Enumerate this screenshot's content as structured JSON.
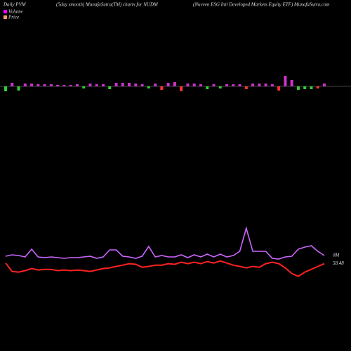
{
  "chart_data": {
    "type": "pvm",
    "title": "Daily PVM",
    "subtitle": "(5day smooth) MunafaSutra(TM) charts for NUDM",
    "description": "(Nuveen ESG Intl Developed Markets Equity ETF) MunafaSutra.com",
    "legend": [
      {
        "name": "Volume",
        "color": "#ff00ff"
      },
      {
        "name": "Price",
        "color": "#ff9966"
      }
    ],
    "pvm": {
      "ylim": [
        -20,
        20
      ],
      "values": [
        -7,
        5,
        -6,
        4,
        4,
        3,
        3,
        3,
        2,
        2,
        2,
        3,
        -3,
        4,
        3,
        3,
        -4,
        5,
        5,
        5,
        4,
        3,
        -3,
        4,
        -5,
        5,
        6,
        -7,
        4,
        4,
        3,
        -4,
        3,
        -3,
        3,
        3,
        3,
        -4,
        4,
        4,
        4,
        3,
        -6,
        15,
        9,
        -5,
        -4,
        -4,
        -3,
        4
      ],
      "colors": [
        "#33cc33",
        "#cc33cc",
        "#33cc33",
        "#cc33cc",
        "#cc33cc",
        "#cc33cc",
        "#cc33cc",
        "#cc33cc",
        "#cc33cc",
        "#cc33cc",
        "#cc33cc",
        "#cc33cc",
        "#33cc33",
        "#cc33cc",
        "#cc33cc",
        "#cc33cc",
        "#33cc33",
        "#cc33cc",
        "#cc33cc",
        "#cc33cc",
        "#cc33cc",
        "#cc33cc",
        "#33cc33",
        "#cc33cc",
        "#ff3333",
        "#cc33cc",
        "#cc33cc",
        "#ff3333",
        "#cc33cc",
        "#cc33cc",
        "#cc33cc",
        "#33cc33",
        "#cc33cc",
        "#33cc33",
        "#cc33cc",
        "#cc33cc",
        "#cc33cc",
        "#ff3333",
        "#cc33cc",
        "#cc33cc",
        "#cc33cc",
        "#cc33cc",
        "#ff3333",
        "#cc33cc",
        "#cc33cc",
        "#33cc33",
        "#33cc33",
        "#33cc33",
        "#ff3333",
        "#cc33cc"
      ]
    },
    "series": [
      {
        "name": "Volume",
        "color": "#cc66ff",
        "ylim": [
          0,
          100
        ],
        "last_label": "0M",
        "values": [
          35,
          37,
          36,
          34,
          45,
          34,
          33,
          34,
          33,
          32,
          33,
          33,
          34,
          35,
          32,
          34,
          44,
          44,
          35,
          34,
          32,
          35,
          49,
          34,
          36,
          34,
          34,
          37,
          33,
          37,
          34,
          38,
          34,
          38,
          34,
          36,
          42,
          75,
          42,
          42,
          42,
          32,
          31,
          34,
          35,
          45,
          48,
          50,
          42,
          36
        ]
      },
      {
        "name": "Price",
        "color": "#ff2222",
        "ylim": [
          57,
          59
        ],
        "last_label": "58.48",
        "values": [
          58.51,
          58.11,
          58.08,
          58.15,
          58.25,
          58.18,
          58.21,
          58.21,
          58.15,
          58.18,
          58.15,
          58.18,
          58.15,
          58.11,
          58.18,
          58.25,
          58.28,
          58.35,
          58.41,
          58.48,
          58.45,
          58.31,
          58.35,
          58.41,
          58.41,
          58.48,
          58.45,
          58.55,
          58.48,
          58.55,
          58.48,
          58.58,
          58.51,
          58.61,
          58.51,
          58.41,
          58.35,
          58.28,
          58.35,
          58.31,
          58.48,
          58.55,
          58.48,
          58.28,
          58.01,
          57.88,
          58.08,
          58.21,
          58.35,
          58.48
        ]
      }
    ]
  }
}
